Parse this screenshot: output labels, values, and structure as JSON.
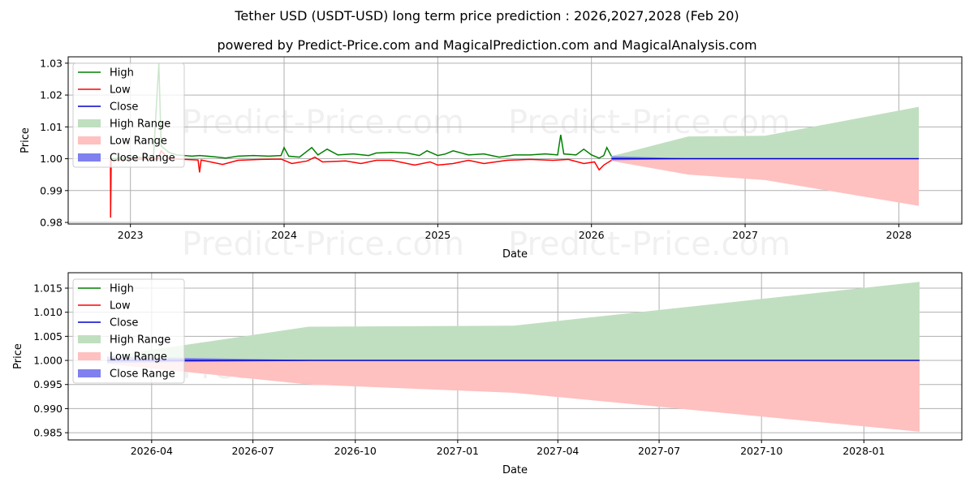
{
  "title": "Tether USD (USDT-USD) long term price prediction : 2026,2027,2028 (Feb 20)",
  "subtitle": "powered by Predict-Price.com and MagicalPrediction.com and MagicalAnalysis.com",
  "watermark": "Predict-Price.com",
  "colors": {
    "high": "#008000",
    "low": "#ff0000",
    "close": "#0000cc",
    "high_range": "#c0dfc0",
    "low_range": "#ffc0c0",
    "close_range": "#8080f0"
  },
  "legend": [
    "High",
    "Low",
    "Close",
    "High Range",
    "Low Range",
    "Close Range"
  ],
  "chart_data": [
    {
      "type": "line",
      "xlabel": "Date",
      "ylabel": "Price",
      "xlim": [
        2022.595,
        2028.41
      ],
      "ylim": [
        0.9795,
        1.032
      ],
      "grid": true,
      "legend_position": "top-left",
      "xticks": [
        {
          "v": 2023,
          "label": "2023"
        },
        {
          "v": 2024,
          "label": "2024"
        },
        {
          "v": 2025,
          "label": "2025"
        },
        {
          "v": 2026,
          "label": "2026"
        },
        {
          "v": 2027,
          "label": "2027"
        },
        {
          "v": 2028,
          "label": "2028"
        }
      ],
      "yticks": [
        {
          "v": 0.98,
          "label": "0.98"
        },
        {
          "v": 0.99,
          "label": "0.99"
        },
        {
          "v": 1.0,
          "label": "1.00"
        },
        {
          "v": 1.01,
          "label": "1.01"
        },
        {
          "v": 1.02,
          "label": "1.02"
        },
        {
          "v": 1.03,
          "label": "1.03"
        }
      ],
      "high": [
        [
          2022.87,
          1.0
        ],
        [
          2022.95,
          1.0003
        ],
        [
          2023.05,
          1.0004
        ],
        [
          2023.15,
          1.0005
        ],
        [
          2023.185,
          1.03
        ],
        [
          2023.2,
          1.004
        ],
        [
          2023.25,
          1.002
        ],
        [
          2023.3,
          1.0012
        ],
        [
          2023.4,
          1.0008
        ],
        [
          2023.45,
          1.001
        ],
        [
          2023.55,
          1.0006
        ],
        [
          2023.62,
          1.0002
        ],
        [
          2023.7,
          1.0008
        ],
        [
          2023.8,
          1.001
        ],
        [
          2023.9,
          1.0008
        ],
        [
          2023.98,
          1.001
        ],
        [
          2024.0,
          1.0035
        ],
        [
          2024.03,
          1.0008
        ],
        [
          2024.1,
          1.0005
        ],
        [
          2024.18,
          1.0035
        ],
        [
          2024.22,
          1.0012
        ],
        [
          2024.28,
          1.003
        ],
        [
          2024.35,
          1.0012
        ],
        [
          2024.45,
          1.0015
        ],
        [
          2024.55,
          1.001
        ],
        [
          2024.6,
          1.0018
        ],
        [
          2024.7,
          1.002
        ],
        [
          2024.8,
          1.0018
        ],
        [
          2024.88,
          1.001
        ],
        [
          2024.93,
          1.0025
        ],
        [
          2025.0,
          1.001
        ],
        [
          2025.05,
          1.0015
        ],
        [
          2025.1,
          1.0025
        ],
        [
          2025.2,
          1.0012
        ],
        [
          2025.3,
          1.0015
        ],
        [
          2025.4,
          1.0005
        ],
        [
          2025.5,
          1.0012
        ],
        [
          2025.6,
          1.0012
        ],
        [
          2025.7,
          1.0015
        ],
        [
          2025.78,
          1.0012
        ],
        [
          2025.8,
          1.0075
        ],
        [
          2025.82,
          1.0015
        ],
        [
          2025.9,
          1.0012
        ],
        [
          2025.95,
          1.003
        ],
        [
          2026.0,
          1.0012
        ],
        [
          2026.05,
          1.0002
        ],
        [
          2026.08,
          1.001
        ],
        [
          2026.1,
          1.0035
        ],
        [
          2026.13,
          1.0008
        ]
      ],
      "low": [
        [
          2022.87,
          1.0
        ],
        [
          2022.871,
          0.9815
        ],
        [
          2022.875,
          0.9995
        ],
        [
          2023.0,
          0.9998
        ],
        [
          2023.18,
          1.0
        ],
        [
          2023.2,
          1.0025
        ],
        [
          2023.25,
          1.0
        ],
        [
          2023.35,
          0.9998
        ],
        [
          2023.44,
          0.9996
        ],
        [
          2023.45,
          0.9957
        ],
        [
          2023.46,
          0.9996
        ],
        [
          2023.6,
          0.9982
        ],
        [
          2023.7,
          0.9995
        ],
        [
          2023.85,
          0.9998
        ],
        [
          2023.98,
          0.9999
        ],
        [
          2024.05,
          0.9985
        ],
        [
          2024.15,
          0.9993
        ],
        [
          2024.2,
          1.0005
        ],
        [
          2024.25,
          0.999
        ],
        [
          2024.4,
          0.9993
        ],
        [
          2024.5,
          0.9985
        ],
        [
          2024.6,
          0.9995
        ],
        [
          2024.7,
          0.9995
        ],
        [
          2024.85,
          0.998
        ],
        [
          2024.95,
          0.999
        ],
        [
          2025.0,
          0.998
        ],
        [
          2025.1,
          0.9985
        ],
        [
          2025.2,
          0.9995
        ],
        [
          2025.3,
          0.9985
        ],
        [
          2025.45,
          0.9995
        ],
        [
          2025.6,
          0.9998
        ],
        [
          2025.75,
          0.9995
        ],
        [
          2025.85,
          0.9998
        ],
        [
          2025.95,
          0.9985
        ],
        [
          2026.02,
          0.999
        ],
        [
          2026.05,
          0.9965
        ],
        [
          2026.08,
          0.998
        ],
        [
          2026.13,
          0.9995
        ]
      ],
      "close": [
        [
          2026.13,
          1.0
        ],
        [
          2028.13,
          1.0
        ]
      ],
      "high_range": [
        [
          2026.13,
          1.0008
        ],
        [
          2026.63,
          1.007
        ],
        [
          2027.13,
          1.0072
        ],
        [
          2028.13,
          1.0163
        ]
      ],
      "low_range": [
        [
          2026.13,
          0.9993
        ],
        [
          2026.63,
          0.995
        ],
        [
          2027.13,
          0.9933
        ],
        [
          2028.13,
          0.9852
        ]
      ],
      "close_range": [
        [
          2026.13,
          1.0008,
          0.9995
        ],
        [
          2026.63,
          1.0001,
          0.9999
        ]
      ]
    },
    {
      "type": "line",
      "xlabel": "Date",
      "ylabel": "Price",
      "xlim": [
        "2026-01-16",
        "2028-03-29"
      ],
      "ylim": [
        0.9835,
        1.0182
      ],
      "grid": true,
      "legend_position": "top-left",
      "xticks": [
        {
          "v": "2026-04-01",
          "label": "2026-04"
        },
        {
          "v": "2026-07-01",
          "label": "2026-07"
        },
        {
          "v": "2026-10-01",
          "label": "2026-10"
        },
        {
          "v": "2027-01-01",
          "label": "2027-01"
        },
        {
          "v": "2027-04-01",
          "label": "2027-04"
        },
        {
          "v": "2027-07-01",
          "label": "2027-07"
        },
        {
          "v": "2027-10-01",
          "label": "2027-10"
        },
        {
          "v": "2028-01-01",
          "label": "2028-01"
        }
      ],
      "yticks": [
        {
          "v": 0.985,
          "label": "0.985"
        },
        {
          "v": 0.99,
          "label": "0.990"
        },
        {
          "v": 0.995,
          "label": "0.995"
        },
        {
          "v": 1.0,
          "label": "1.000"
        },
        {
          "v": 1.005,
          "label": "1.005"
        },
        {
          "v": 1.01,
          "label": "1.010"
        },
        {
          "v": 1.015,
          "label": "1.015"
        }
      ],
      "close": [
        [
          "2026-02-20",
          1.0
        ],
        [
          "2028-02-20",
          1.0
        ]
      ],
      "high_range": [
        [
          "2026-02-20",
          1.0008
        ],
        [
          "2026-08-20",
          1.007
        ],
        [
          "2027-02-20",
          1.0072
        ],
        [
          "2028-02-20",
          1.0163
        ]
      ],
      "low_range": [
        [
          "2026-02-20",
          0.9993
        ],
        [
          "2026-08-20",
          0.995
        ],
        [
          "2027-02-20",
          0.9933
        ],
        [
          "2028-02-20",
          0.9852
        ]
      ],
      "close_range": [
        [
          "2026-02-20",
          1.0008,
          0.9995
        ],
        [
          "2026-08-20",
          1.0001,
          0.9999
        ]
      ]
    }
  ]
}
